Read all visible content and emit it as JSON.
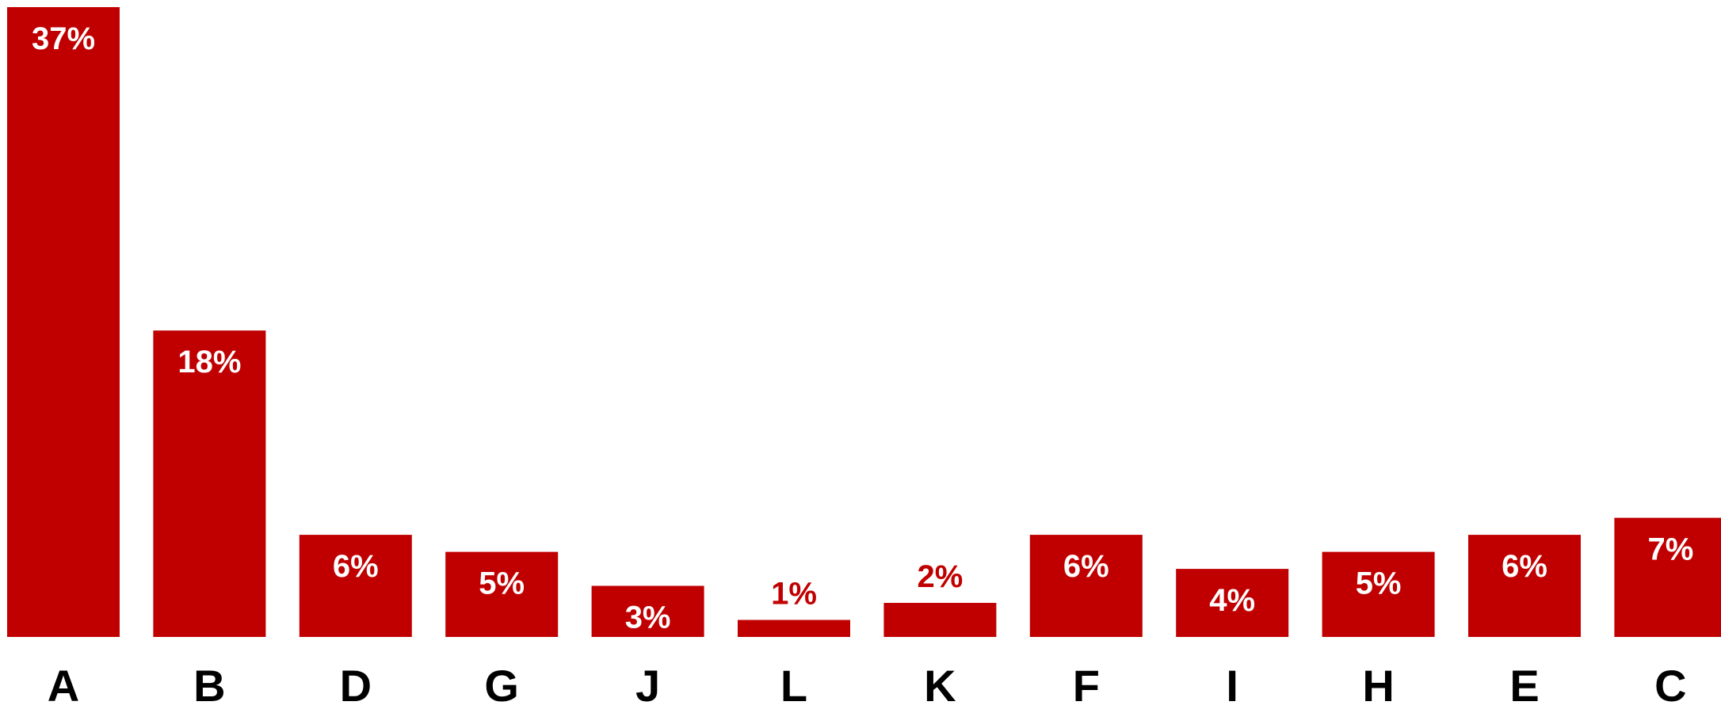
{
  "chart_data": {
    "type": "bar",
    "categories": [
      "A",
      "B",
      "D",
      "G",
      "J",
      "L",
      "K",
      "F",
      "I",
      "H",
      "E",
      "C"
    ],
    "values": [
      37,
      18,
      6,
      5,
      3,
      1,
      2,
      6,
      4,
      5,
      6,
      7
    ],
    "data_labels": [
      "37%",
      "18%",
      "6%",
      "5%",
      "3%",
      "1%",
      "2%",
      "6%",
      "4%",
      "5%",
      "6%",
      "7%"
    ],
    "title": "",
    "xlabel": "",
    "ylabel": "",
    "ylim": [
      0,
      37
    ],
    "grid": false,
    "legend": "none",
    "colors": {
      "bar": "#c00000",
      "label_inside": "#ffffff",
      "label_outside": "#c00000",
      "category_text": "#000000"
    }
  }
}
